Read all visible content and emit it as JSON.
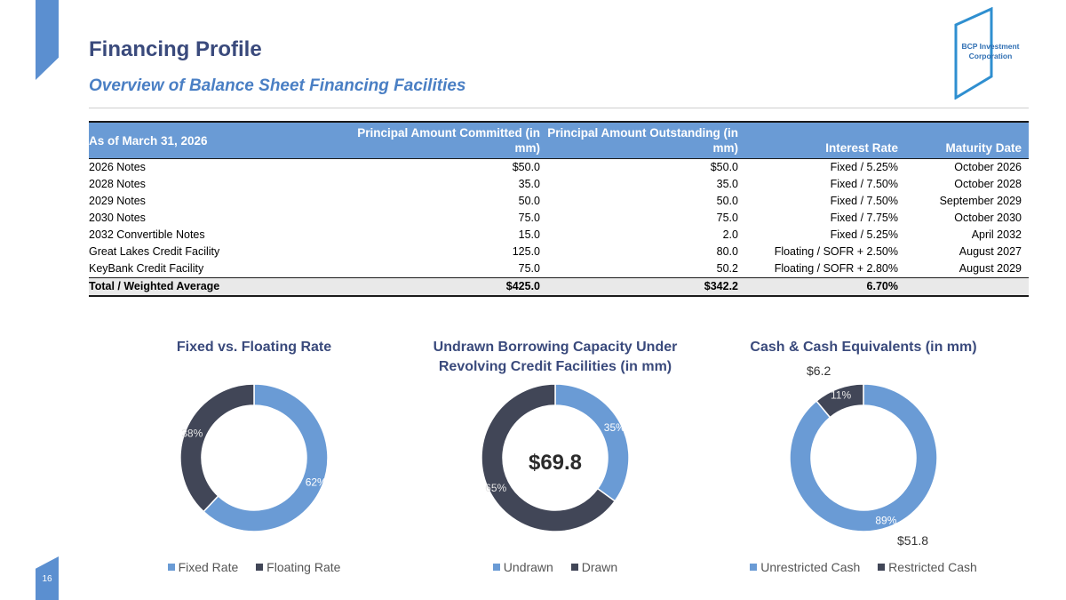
{
  "page": {
    "title": "Financing Profile",
    "subtitle": "Overview of Balance Sheet Financing Facilities",
    "page_number": "16",
    "logo_text_line1": "BCP Investment",
    "logo_text_line2": "Corporation"
  },
  "table": {
    "headers": [
      "As of March 31, 2026",
      "Principal Amount Committed (in mm)",
      "Principal Amount Outstanding (in mm)",
      "Interest Rate",
      "Maturity Date"
    ],
    "rows": [
      [
        "2026 Notes",
        "$50.0",
        "$50.0",
        "Fixed / 5.25%",
        "October 2026"
      ],
      [
        "2028 Notes",
        "35.0",
        "35.0",
        "Fixed / 7.50%",
        "October 2028"
      ],
      [
        "2029 Notes",
        "50.0",
        "50.0",
        "Fixed / 7.50%",
        "September 2029"
      ],
      [
        "2030 Notes",
        "75.0",
        "75.0",
        "Fixed / 7.75%",
        "October 2030"
      ],
      [
        "2032 Convertible Notes",
        "15.0",
        "2.0",
        "Fixed / 5.25%",
        "April 2032"
      ],
      [
        "Great Lakes Credit Facility",
        "125.0",
        "80.0",
        "Floating / SOFR + 2.50%",
        "August 2027"
      ],
      [
        "KeyBank Credit Facility",
        "75.0",
        "50.2",
        "Floating / SOFR + 2.80%",
        "August 2029"
      ]
    ],
    "total": [
      "Total / Weighted Average",
      "$425.0",
      "$342.2",
      "6.70%",
      ""
    ]
  },
  "colors": {
    "light": "#6a9bd5",
    "dark": "#414657",
    "title": "#3a4a7c",
    "accent": "#5b8fd0"
  },
  "chart_data": [
    {
      "type": "pie",
      "title": "Fixed vs. Floating Rate",
      "categories": [
        "Fixed Rate",
        "Floating Rate"
      ],
      "values": [
        62,
        38
      ],
      "labels": [
        "62%",
        "38%"
      ],
      "legend": "bottom"
    },
    {
      "type": "pie",
      "title": "Undrawn Borrowing Capacity Under Revolving Credit Facilities (in mm)",
      "title_line1": "Undrawn Borrowing Capacity Under",
      "title_line2": "Revolving Credit Facilities (in mm)",
      "categories": [
        "Undrawn",
        "Drawn"
      ],
      "values": [
        35,
        65
      ],
      "labels": [
        "35%",
        "65%"
      ],
      "center_value": "$69.8",
      "legend": "bottom"
    },
    {
      "type": "pie",
      "title": "Cash & Cash Equivalents (in mm)",
      "categories": [
        "Unrestricted Cash",
        "Restricted Cash"
      ],
      "values": [
        89,
        11
      ],
      "labels": [
        "89%",
        "11%"
      ],
      "amounts": [
        "$51.8",
        "$6.2"
      ],
      "legend": "bottom"
    }
  ]
}
